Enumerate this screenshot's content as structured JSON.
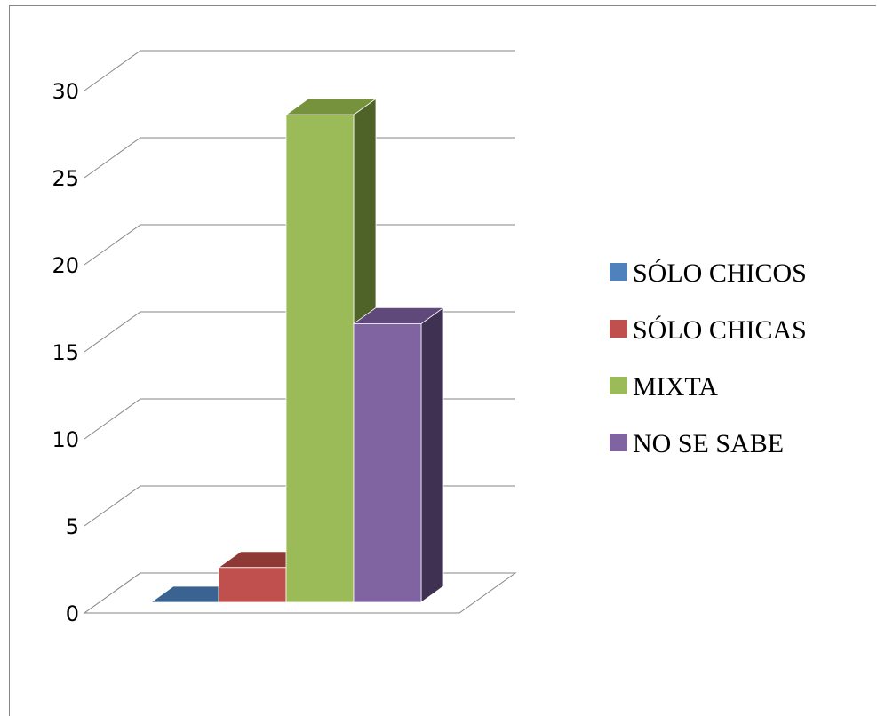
{
  "chart_data": {
    "type": "bar",
    "subtype": "3d-clustered-column",
    "categories": [
      "SÓLO CHICOS",
      "SÓLO CHICAS",
      "MIXTA",
      "NO SE SABE"
    ],
    "values": [
      0,
      2,
      28,
      16
    ],
    "ylim": [
      0,
      30
    ],
    "yticks": [
      "0",
      "5",
      "10",
      "15",
      "20",
      "25",
      "30"
    ],
    "grid": true,
    "legend_position": "right",
    "colors": [
      "#4F81BD",
      "#C0504D",
      "#9BBB59",
      "#8064A2"
    ],
    "side_colors": [
      "#2C4D75",
      "#772C2A",
      "#4F6228",
      "#3F3151"
    ],
    "top_colors": [
      "#3A6391",
      "#8E3936",
      "#76923C",
      "#5F497A"
    ],
    "floor_color": "#ffffff",
    "grid_color": "#868686"
  }
}
